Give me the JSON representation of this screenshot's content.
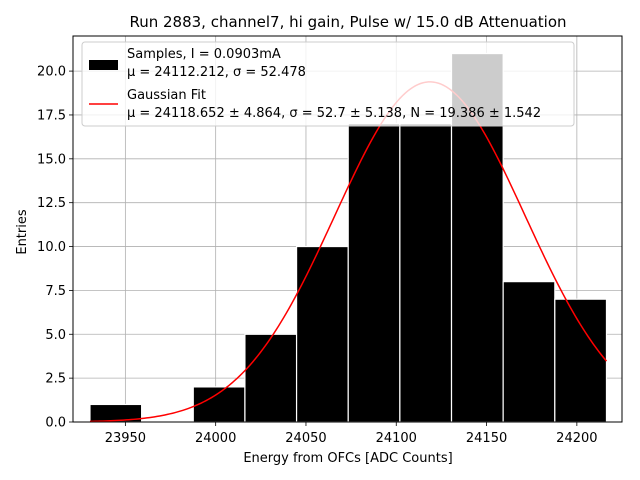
{
  "chart_data": {
    "type": "bar",
    "title": "Run 2883, channel7, hi gain, Pulse w/ 15.0 dB Attenuation",
    "xlabel": "Energy from OFCs [ADC Counts]",
    "ylabel": "Entries",
    "xlim": [
      23921,
      24225
    ],
    "ylim": [
      0,
      22
    ],
    "xticks": [
      23950,
      24000,
      24050,
      24100,
      24150,
      24200
    ],
    "xtick_labels": [
      "23950",
      "24000",
      "24050",
      "24100",
      "24150",
      "24200"
    ],
    "yticks": [
      0,
      2.5,
      5,
      7.5,
      10,
      12.5,
      15,
      17.5,
      20
    ],
    "ytick_labels": [
      "0.0",
      "2.5",
      "5.0",
      "7.5",
      "10.0",
      "12.5",
      "15.0",
      "17.5",
      "20.0"
    ],
    "grid": true,
    "legend_position": "top-left",
    "histogram": {
      "bin_edges": [
        23930.4,
        23959.0,
        23987.6,
        24016.2,
        24044.8,
        24073.4,
        24102.0,
        24130.6,
        24159.2,
        24187.8,
        24216.4
      ],
      "counts": [
        1,
        0,
        2,
        5,
        10,
        17,
        17,
        21,
        8,
        7
      ],
      "color": "#000000",
      "edgecolor": "#ffffff"
    },
    "fit": {
      "mu": 24118.652,
      "sigma": 52.7,
      "N": 19.386,
      "x_range": [
        23930.4,
        24216.4
      ],
      "color": "#ff0000"
    },
    "legend": [
      {
        "marker": "bar",
        "color": "#000000",
        "line1": "Samples, I = 0.0903mA",
        "line2": "μ = 24112.212, σ = 52.478"
      },
      {
        "marker": "line",
        "color": "#ff0000",
        "line1": "Gaussian Fit",
        "line2": "μ = 24118.652 ± 4.864, σ = 52.7 ± 5.138, N = 19.386 ± 1.542"
      }
    ]
  }
}
